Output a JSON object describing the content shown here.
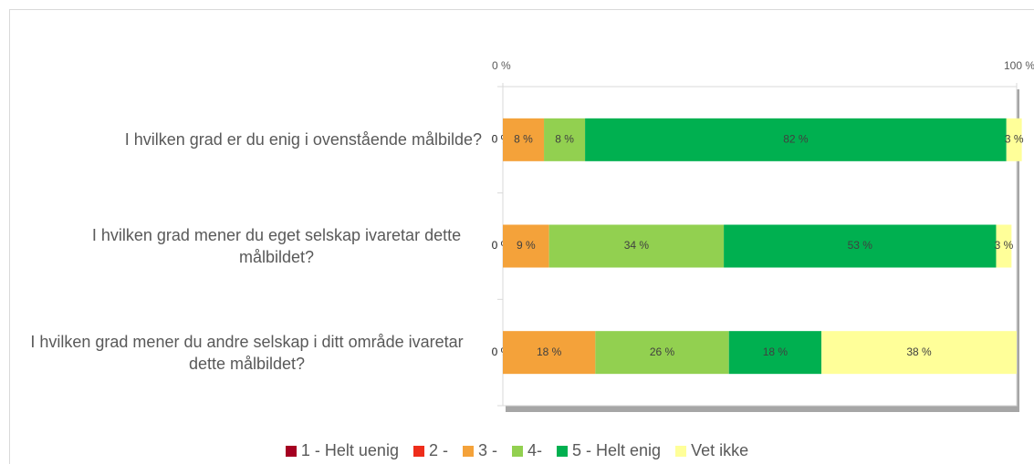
{
  "chart_data": {
    "type": "stacked_bar_horizontal",
    "categories": [
      "I hvilken grad er du enig i ovenstående målbilde?",
      "I hvilken grad mener du eget selskap ivaretar dette målbildet?",
      "I hvilken grad mener du andre selskap i ditt område ivaretar dette målbildet?"
    ],
    "series": [
      {
        "name": "1 - Helt uenig",
        "color": "#a50021",
        "values": [
          0,
          0,
          0
        ],
        "value_labels": [
          "0 %",
          "0 %",
          "0 %"
        ]
      },
      {
        "name": "2 -",
        "color": "#ee2d1b",
        "values": [
          0,
          0,
          0
        ],
        "value_labels": [
          "0 %",
          "0 %",
          "0 %"
        ]
      },
      {
        "name": "3 -",
        "color": "#f4a23a",
        "values": [
          8,
          9,
          18
        ],
        "value_labels": [
          "8 %",
          "9 %",
          "18 %"
        ]
      },
      {
        "name": "4-",
        "color": "#92d050",
        "values": [
          8,
          34,
          26
        ],
        "value_labels": [
          "8 %",
          "34 %",
          "26 %"
        ]
      },
      {
        "name": "5 - Helt enig",
        "color": "#00b050",
        "values": [
          82,
          53,
          18
        ],
        "value_labels": [
          "82 %",
          "53 %",
          "18 %"
        ]
      },
      {
        "name": "Vet ikke",
        "color": "#ffff99",
        "values": [
          3,
          3,
          38
        ],
        "value_labels": [
          "3 %",
          "3 %",
          "38 %"
        ]
      }
    ],
    "xlim": [
      0,
      100
    ],
    "xticks": [
      {
        "value": 0,
        "label": "0 %"
      },
      {
        "value": 100,
        "label": "100 %"
      }
    ],
    "legend": "bottom"
  }
}
